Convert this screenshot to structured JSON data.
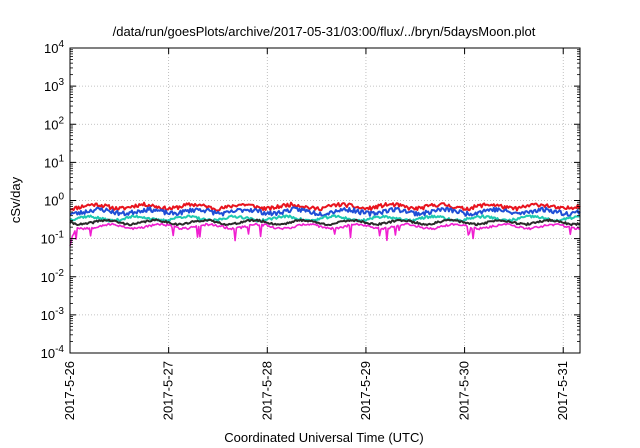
{
  "chart_data": {
    "type": "line",
    "title": "/data/run/goesPlots/archive/2017-05-31/03:00/flux/../bryn/5daysMoon.plot",
    "xlabel": "Coordinated Universal Time (UTC)",
    "ylabel": "cSv/day",
    "yscale": "log",
    "ylim": [
      0.0001,
      10000
    ],
    "xlim_days": [
      0,
      5.17
    ],
    "grid": true,
    "x_ticks": [
      {
        "label": "2017-5-26",
        "day": 0
      },
      {
        "label": "2017-5-27",
        "day": 1
      },
      {
        "label": "2017-5-28",
        "day": 2
      },
      {
        "label": "2017-5-29",
        "day": 3
      },
      {
        "label": "2017-5-30",
        "day": 4
      },
      {
        "label": "2017-5-31",
        "day": 5
      }
    ],
    "y_ticks": [
      {
        "base": "10",
        "exp": "4",
        "value": 10000
      },
      {
        "base": "10",
        "exp": "3",
        "value": 1000
      },
      {
        "base": "10",
        "exp": "2",
        "value": 100
      },
      {
        "base": "10",
        "exp": "1",
        "value": 10
      },
      {
        "base": "10",
        "exp": "0",
        "value": 1
      },
      {
        "base": "10",
        "exp": "-1",
        "value": 0.1
      },
      {
        "base": "10",
        "exp": "-2",
        "value": 0.01
      },
      {
        "base": "10",
        "exp": "-3",
        "value": 0.001
      },
      {
        "base": "10",
        "exp": "-4",
        "value": 0.0001
      }
    ],
    "series": [
      {
        "color": "#e8141e",
        "base": 0.7,
        "noise": 0.12,
        "seed": 11,
        "dips": 0
      },
      {
        "color": "#1f4fd6",
        "base": 0.52,
        "noise": 0.14,
        "seed": 23,
        "dips": 0
      },
      {
        "color": "#1ec9b0",
        "base": 0.34,
        "noise": 0.08,
        "seed": 37,
        "dips": 0
      },
      {
        "color": "#2a2a2a",
        "base": 0.27,
        "noise": 0.06,
        "seed": 41,
        "dips": 0
      },
      {
        "color": "#f01fd0",
        "base": 0.21,
        "noise": 0.07,
        "seed": 53,
        "dips": 1
      }
    ]
  }
}
